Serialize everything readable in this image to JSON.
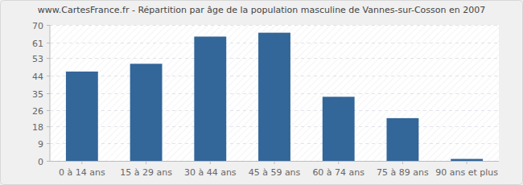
{
  "chart_data": {
    "type": "bar",
    "title": "www.CartesFrance.fr - Répartition par âge de la population masculine de Vannes-sur-Cosson en 2007",
    "categories": [
      "0 à 14 ans",
      "15 à 29 ans",
      "30 à 44 ans",
      "45 à 59 ans",
      "60 à 74 ans",
      "75 à 89 ans",
      "90 ans et plus"
    ],
    "values": [
      46,
      50,
      64,
      66,
      33,
      22,
      1
    ],
    "color": "#336699",
    "ylim": [
      0,
      70
    ],
    "yticks": [
      0,
      9,
      18,
      26,
      35,
      44,
      53,
      61,
      70
    ],
    "grid": true
  }
}
